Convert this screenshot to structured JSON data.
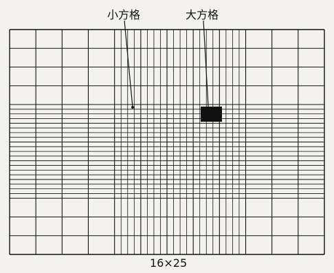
{
  "labels": {
    "small_square": "小方格",
    "large_square": "大方格"
  },
  "caption": "16×25",
  "grid": {
    "main_rows": 12,
    "main_cols": 12,
    "subdivided_cols": 5,
    "subdivided_rows": 5,
    "subdivisions": 4
  },
  "colors": {
    "line": "#111111",
    "background": "#f3f2ef"
  }
}
